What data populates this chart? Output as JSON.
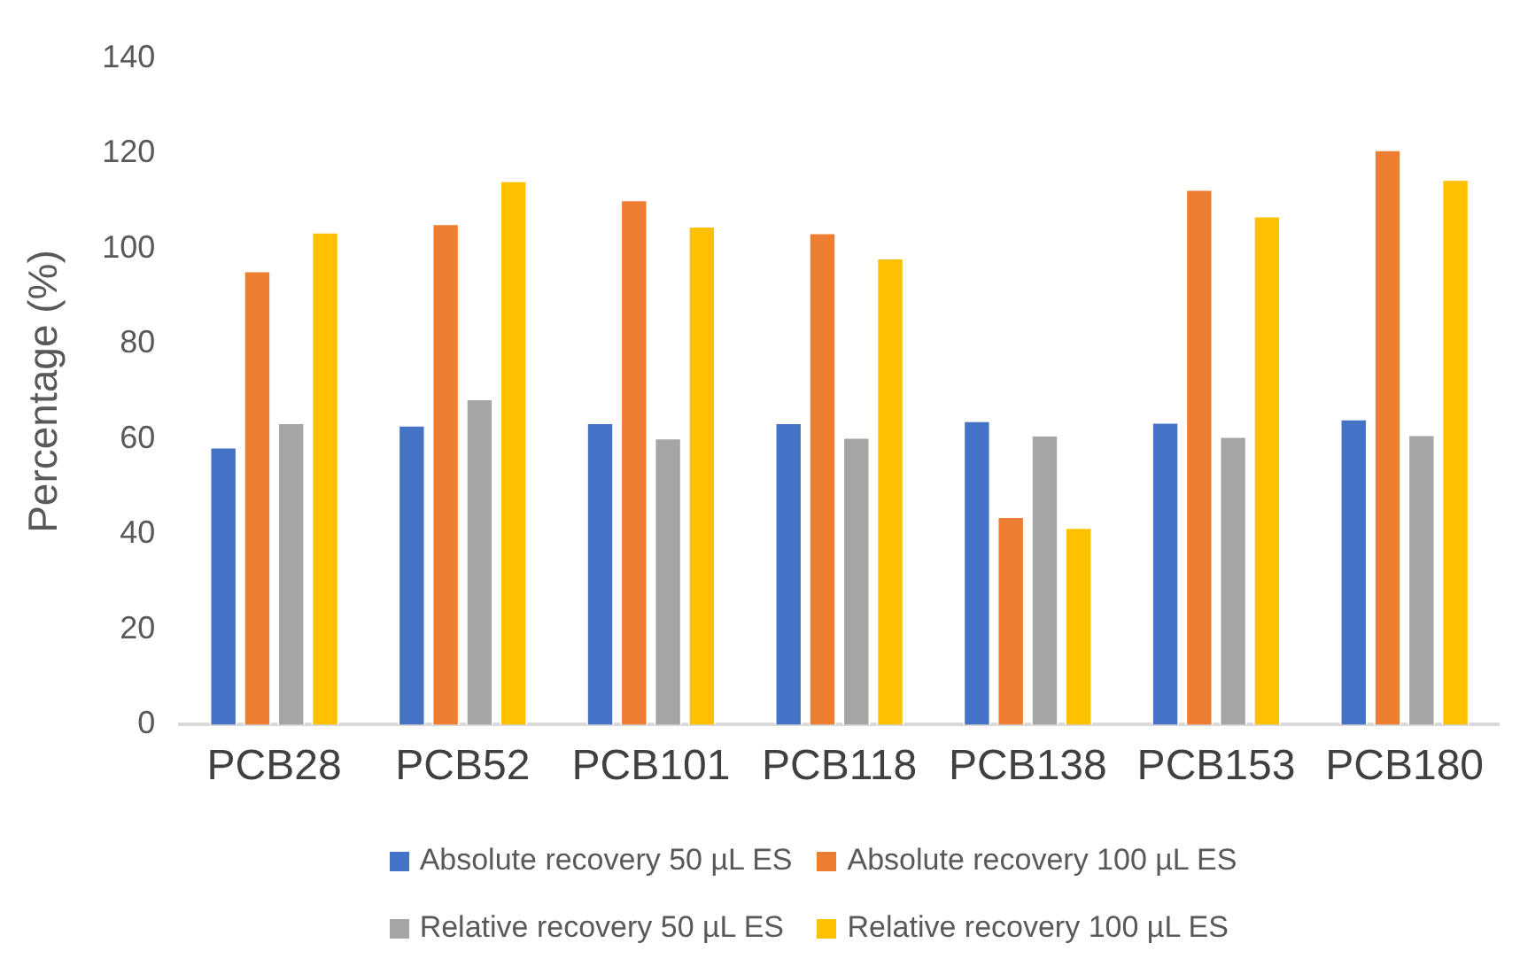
{
  "chart_data": {
    "type": "bar",
    "ylabel": "Percentage (%)",
    "categories": [
      "PCB28",
      "PCB52",
      "PCB101",
      "PCB118",
      "PCB138",
      "PCB153",
      "PCB180"
    ],
    "series": [
      {
        "name": "Absolute recovery 50 µL ES",
        "color": "#4472c4",
        "values": [
          58.4,
          63,
          63.5,
          63.5,
          63.9,
          63.6,
          64.3
        ]
      },
      {
        "name": "Absolute recovery 100 µL ES",
        "color": "#ed7d31",
        "values": [
          95.4,
          105.3,
          110.3,
          103.4,
          43.8,
          112.5,
          120.8
        ]
      },
      {
        "name": "Relative recovery 50 µL ES",
        "color": "#a5a5a5",
        "values": [
          63.5,
          68.5,
          60.3,
          60.4,
          60.9,
          60.6,
          61
        ]
      },
      {
        "name": "Relative recovery 100 µL ES",
        "color": "#ffc000",
        "values": [
          103.5,
          114.3,
          104.8,
          98.1,
          41.5,
          106.9,
          114.6
        ]
      }
    ],
    "ylim": [
      0,
      140
    ],
    "yticks": [
      0,
      20,
      40,
      60,
      80,
      100,
      120,
      140
    ],
    "grid": false,
    "legend": "bottom"
  }
}
